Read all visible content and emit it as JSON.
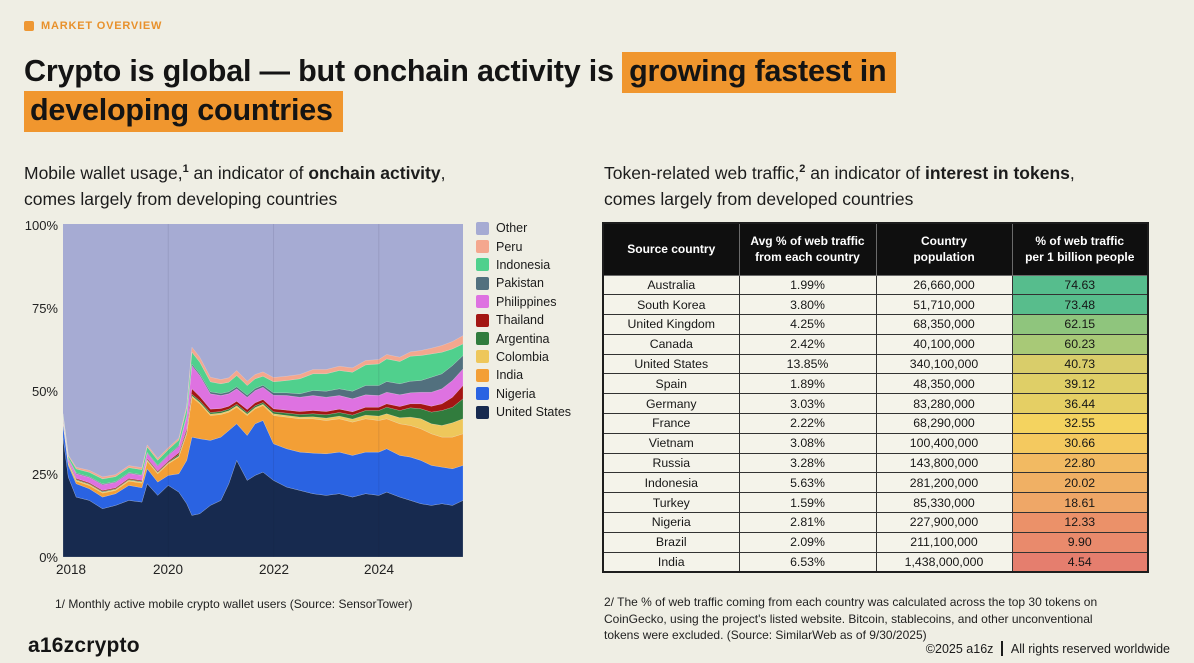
{
  "eyebrow": {
    "label": "MARKET OVERVIEW",
    "color": "#E8912C"
  },
  "title": {
    "pre": "Crypto is global — but onchain activity is ",
    "highlight1": "growing fastest in",
    "highlight2": "developing countries",
    "highlight_color": "#F0962E"
  },
  "left": {
    "subtitle": {
      "t1": "Mobile wallet usage,",
      "sup": "1",
      "t2": " an indicator of ",
      "strong": "onchain activity",
      "t3": ",",
      "t4": "comes largely from developing countries"
    },
    "footnote": "1/ Monthly active mobile crypto wallet users (Source: SensorTower)"
  },
  "right": {
    "subtitle": {
      "t1": "Token-related web traffic,",
      "sup": "2",
      "t2": " an indicator of ",
      "strong": "interest in tokens",
      "t3": ",",
      "t4": "comes largely from developed countries"
    },
    "footnote": "2/ The % of web traffic coming from each country was calculated across the top 30 tokens on\nCoinGecko, using the project's listed website. Bitcoin, stablecoins, and other unconventional\ntokens were excluded. (Source: SimilarWeb as of 9/30/2025)"
  },
  "chart_data": {
    "type": "area",
    "stacked": true,
    "units": "% of monthly active mobile crypto wallet users",
    "ylim": [
      0,
      100
    ],
    "xlim": [
      2018,
      2025.6
    ],
    "yticks": [
      "100%",
      "75%",
      "50%",
      "25%",
      "0%"
    ],
    "xticks": [
      "2018",
      "2020",
      "2022",
      "2024"
    ],
    "grid_years": [
      2020,
      2022,
      2024
    ],
    "x_years": [
      2018.0,
      2018.1,
      2018.25,
      2018.5,
      2018.75,
      2019.0,
      2019.25,
      2019.5,
      2019.6,
      2019.8,
      2020.0,
      2020.2,
      2020.35,
      2020.45,
      2020.6,
      2020.8,
      2021.0,
      2021.15,
      2021.3,
      2021.5,
      2021.65,
      2021.8,
      2022.0,
      2022.25,
      2022.5,
      2022.75,
      2023.0,
      2023.25,
      2023.5,
      2023.75,
      2024.0,
      2024.15,
      2024.4,
      2024.6,
      2024.8,
      2025.0,
      2025.2,
      2025.4,
      2025.6
    ],
    "series": [
      {
        "name": "United States",
        "color": "#172A4F",
        "values": [
          36,
          24,
          18,
          17,
          14.5,
          15.5,
          17,
          16.5,
          22,
          18.5,
          21.5,
          19.5,
          16,
          12.5,
          13,
          15.5,
          17,
          22,
          29,
          23,
          24.5,
          25.5,
          23,
          21,
          20,
          19,
          18.5,
          19,
          18,
          19,
          18.5,
          19.5,
          18,
          17,
          16,
          15.5,
          16,
          15.5,
          17
        ]
      },
      {
        "name": "Nigeria",
        "color": "#2A63E2",
        "values": [
          4,
          3.5,
          4,
          3.5,
          3.5,
          3.5,
          4.5,
          4.3,
          4.5,
          4,
          3,
          5.5,
          13,
          23.5,
          22.5,
          19.5,
          19,
          16,
          11,
          13.5,
          15.5,
          15.5,
          11,
          11.5,
          11.5,
          12.2,
          12.5,
          12.5,
          12.5,
          12.5,
          13,
          13,
          12.5,
          13,
          13,
          12,
          11,
          11,
          10.5
        ]
      },
      {
        "name": "India",
        "color": "#F39F36",
        "values": [
          0.5,
          0.5,
          0.8,
          1,
          1.2,
          1,
          1.3,
          1.4,
          2.3,
          2.5,
          3.5,
          5,
          8,
          12,
          10.5,
          7.5,
          6.8,
          5.5,
          5,
          6,
          4.5,
          4.5,
          8.5,
          9.5,
          10,
          10.3,
          10,
          10,
          10,
          10,
          9.5,
          9,
          9.5,
          9.5,
          9.5,
          9.5,
          9,
          9.5,
          9.5
        ]
      },
      {
        "name": "Colombia",
        "color": "#EEC75B",
        "values": [
          0.3,
          0.3,
          0.3,
          0.3,
          0.3,
          0.3,
          0.3,
          0.3,
          0.3,
          0.3,
          0.3,
          0.3,
          0.3,
          0.4,
          0.4,
          0.4,
          0.4,
          0.4,
          0.4,
          0.4,
          0.4,
          0.4,
          0.5,
          0.5,
          0.5,
          0.6,
          0.7,
          0.8,
          0.9,
          1.1,
          1.3,
          1.5,
          1.8,
          2.5,
          3,
          3,
          3.5,
          4.3,
          4.5
        ]
      },
      {
        "name": "Argentina",
        "color": "#317C3D",
        "values": [
          0.2,
          0.2,
          0.2,
          0.2,
          0.2,
          0.2,
          0.2,
          0.2,
          0.2,
          0.2,
          0.2,
          0.5,
          0.5,
          0.5,
          0.5,
          0.5,
          0.5,
          0.5,
          0.5,
          0.5,
          0.5,
          0.5,
          0.6,
          0.7,
          0.8,
          0.9,
          1,
          1.1,
          1.2,
          1.4,
          1.7,
          2,
          2.2,
          2.8,
          3,
          3.5,
          4.5,
          4.7,
          6
        ]
      },
      {
        "name": "Thailand",
        "color": "#A31613",
        "values": [
          0.3,
          0.3,
          0.3,
          0.3,
          0.3,
          0.3,
          0.3,
          0.3,
          0.3,
          0.3,
          0.3,
          0.5,
          0.7,
          1.6,
          1.3,
          1,
          0.9,
          0.9,
          0.9,
          0.9,
          0.9,
          0.9,
          0.9,
          0.9,
          0.9,
          1,
          1,
          1,
          1,
          1,
          1,
          1,
          1.2,
          1.2,
          1.5,
          1.8,
          2,
          3,
          4
        ]
      },
      {
        "name": "Philippines",
        "color": "#DE72E1",
        "values": [
          0.7,
          0.7,
          1.4,
          1.6,
          1.7,
          1.6,
          1.5,
          1.5,
          1.6,
          1.5,
          1.7,
          1.9,
          3.6,
          7,
          6.3,
          4.6,
          3.9,
          3.7,
          3.7,
          3.7,
          3.7,
          3.7,
          4.1,
          4.4,
          4.3,
          4.5,
          4.3,
          4.1,
          3.9,
          3.7,
          3.5,
          3.5,
          3.5,
          3.3,
          3.5,
          4.2,
          4.5,
          5,
          5
        ]
      },
      {
        "name": "Pakistan",
        "color": "#52707E",
        "values": [
          0.25,
          0.25,
          0.25,
          0.25,
          0.25,
          0.25,
          0.25,
          0.25,
          0.25,
          0.25,
          0.25,
          0.3,
          0.4,
          0.5,
          0.5,
          0.6,
          0.6,
          0.6,
          0.6,
          0.6,
          0.6,
          0.6,
          0.7,
          0.8,
          1,
          1.5,
          1.8,
          2,
          2.3,
          2.8,
          3,
          3.2,
          3.3,
          3.5,
          3.5,
          4.5,
          4.5,
          4.5,
          4
        ]
      },
      {
        "name": "Indonesia",
        "color": "#50D08D",
        "values": [
          0.6,
          0.6,
          1.2,
          1.3,
          1.5,
          1.5,
          1.5,
          1.5,
          1.6,
          1.5,
          1.5,
          1.6,
          2.1,
          3.5,
          3.5,
          3,
          2.9,
          2.9,
          3.4,
          2.9,
          2.9,
          2.7,
          3.3,
          3.7,
          4.5,
          5,
          5.2,
          5.5,
          5.7,
          6.2,
          6.5,
          6.8,
          6.7,
          7.5,
          7.5,
          7,
          6.5,
          5,
          3.5
        ]
      },
      {
        "name": "Peru",
        "color": "#F4A78E",
        "values": [
          0.2,
          0.3,
          0.5,
          0.6,
          0.6,
          0.6,
          0.6,
          0.6,
          0.6,
          0.6,
          0.6,
          0.6,
          0.8,
          1.5,
          1.5,
          1.4,
          1.3,
          1.3,
          1.5,
          1.3,
          1.3,
          1.3,
          1.3,
          1.3,
          1.3,
          1.3,
          1.3,
          1.3,
          1.3,
          1.3,
          1.3,
          1.3,
          1.3,
          1.3,
          1.5,
          1.7,
          2,
          2.2,
          2.5
        ]
      }
    ],
    "other": {
      "name": "Other",
      "color": "#A6ABD3",
      "note": "remainder up to 100%"
    },
    "legend": [
      {
        "label": "Other",
        "color": "#A6ABD3"
      },
      {
        "label": "Peru",
        "color": "#F4A78E"
      },
      {
        "label": "Indonesia",
        "color": "#50D08D"
      },
      {
        "label": "Pakistan",
        "color": "#52707E"
      },
      {
        "label": "Philippines",
        "color": "#DE72E1"
      },
      {
        "label": "Thailand",
        "color": "#A31613"
      },
      {
        "label": "Argentina",
        "color": "#317C3D"
      },
      {
        "label": "Colombia",
        "color": "#EEC75B"
      },
      {
        "label": "India",
        "color": "#F39F36"
      },
      {
        "label": "Nigeria",
        "color": "#2A63E2"
      },
      {
        "label": "United States",
        "color": "#172A4F"
      }
    ]
  },
  "table": {
    "headers": [
      "Source country",
      "Avg % of web traffic\nfrom each country",
      "Country\npopulation",
      "% of web traffic\nper 1 billion people"
    ],
    "rows": [
      {
        "country": "Australia",
        "avg_pct": "1.99%",
        "population": "26,660,000",
        "per_billion": "74.63",
        "color": "#56BD8D"
      },
      {
        "country": "South Korea",
        "avg_pct": "3.80%",
        "population": "51,710,000",
        "per_billion": "73.48",
        "color": "#58BD8C"
      },
      {
        "country": "United Kingdom",
        "avg_pct": "4.25%",
        "population": "68,350,000",
        "per_billion": "62.15",
        "color": "#8FC57D"
      },
      {
        "country": "Canada",
        "avg_pct": "2.42%",
        "population": "40,100,000",
        "per_billion": "60.23",
        "color": "#A8C977"
      },
      {
        "country": "United States",
        "avg_pct": "13.85%",
        "population": "340,100,000",
        "per_billion": "40.73",
        "color": "#D9CD6A"
      },
      {
        "country": "Spain",
        "avg_pct": "1.89%",
        "population": "48,350,000",
        "per_billion": "39.12",
        "color": "#DFCF67"
      },
      {
        "country": "Germany",
        "avg_pct": "3.03%",
        "population": "83,280,000",
        "per_billion": "36.44",
        "color": "#E5CF64"
      },
      {
        "country": "France",
        "avg_pct": "2.22%",
        "population": "68,290,000",
        "per_billion": "32.55",
        "color": "#F4D35F"
      },
      {
        "country": "Vietnam",
        "avg_pct": "3.08%",
        "population": "100,400,000",
        "per_billion": "30.66",
        "color": "#F4C95F"
      },
      {
        "country": "Russia",
        "avg_pct": "3.28%",
        "population": "143,800,000",
        "per_billion": "22.80",
        "color": "#F2BA62"
      },
      {
        "country": "Indonesia",
        "avg_pct": "5.63%",
        "population": "281,200,000",
        "per_billion": "20.02",
        "color": "#F0B064"
      },
      {
        "country": "Turkey",
        "avg_pct": "1.59%",
        "population": "85,330,000",
        "per_billion": "18.61",
        "color": "#EFA767"
      },
      {
        "country": "Nigeria",
        "avg_pct": "2.81%",
        "population": "227,900,000",
        "per_billion": "12.33",
        "color": "#EB9169"
      },
      {
        "country": "Brazil",
        "avg_pct": "2.09%",
        "population": "211,100,000",
        "per_billion": "9.90",
        "color": "#E98A6C"
      },
      {
        "country": "India",
        "avg_pct": "6.53%",
        "population": "1,438,000,000",
        "per_billion": "4.54",
        "color": "#E57E6E"
      }
    ]
  },
  "footer": {
    "logo": "a16zcrypto",
    "copy_left": "©2025 a16z",
    "copy_right": "All rights reserved worldwide"
  }
}
